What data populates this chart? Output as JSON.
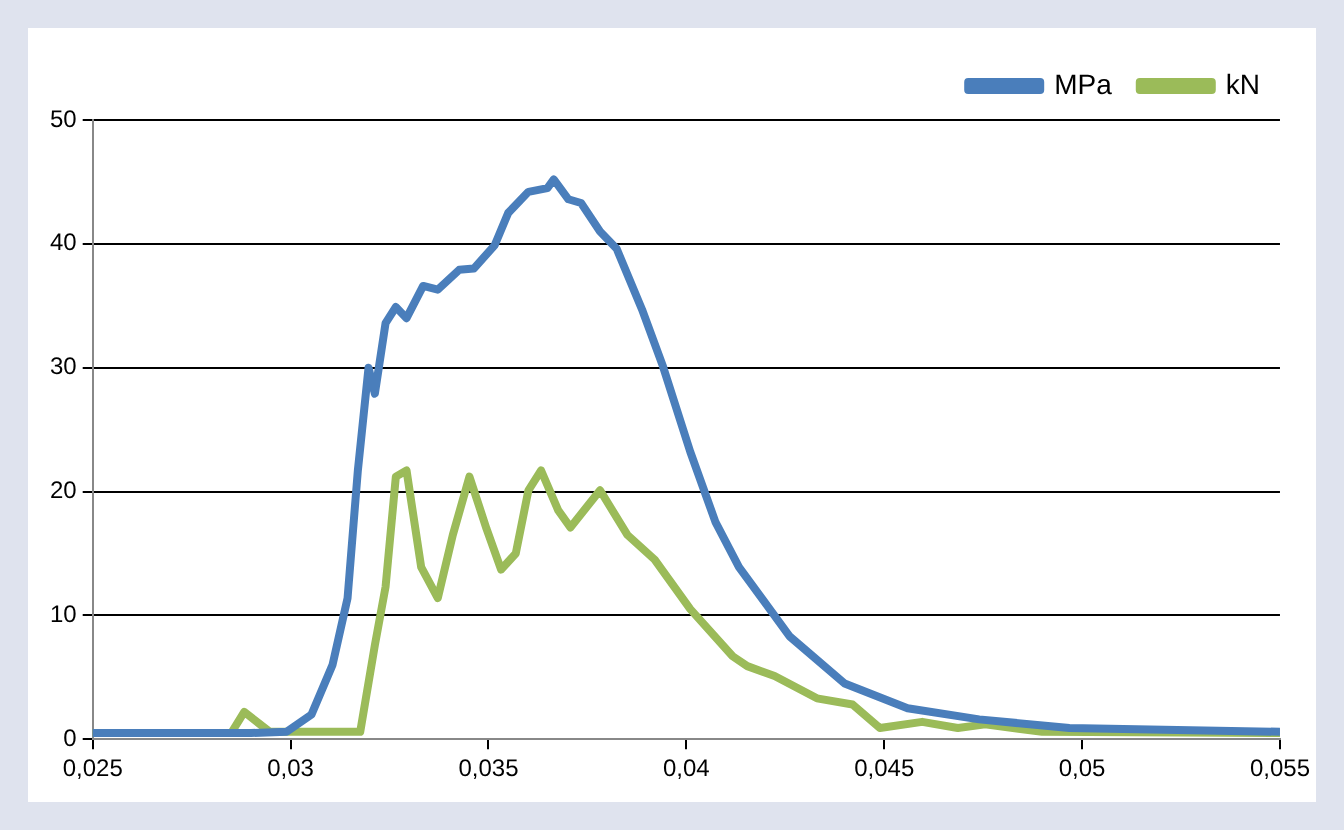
{
  "chart_data": {
    "type": "line",
    "xlim": [
      0.025,
      0.055
    ],
    "xticks": [
      {
        "value": 0.025,
        "label": "0,025"
      },
      {
        "value": 0.03,
        "label": "0,03"
      },
      {
        "value": 0.035,
        "label": "0,035"
      },
      {
        "value": 0.04,
        "label": "0,04"
      },
      {
        "value": 0.045,
        "label": "0,045"
      },
      {
        "value": 0.05,
        "label": "0,05"
      },
      {
        "value": 0.055,
        "label": "0,055"
      }
    ],
    "ylim": [
      0,
      50
    ],
    "yticks": [
      0,
      10,
      20,
      30,
      40,
      50
    ],
    "grid": "y",
    "legend": "top right",
    "marker": "none",
    "line_style": "solid",
    "series": [
      {
        "name": "MPa",
        "color": "#4a7ebb",
        "x": [
          0.025,
          0.029,
          0.0299,
          0.03053,
          0.03106,
          0.03144,
          0.0317,
          0.03197,
          0.03213,
          0.0324,
          0.03266,
          0.03293,
          0.03335,
          0.03372,
          0.03426,
          0.03463,
          0.03516,
          0.0355,
          0.03601,
          0.03649,
          0.03665,
          0.03702,
          0.03734,
          0.03782,
          0.03824,
          0.03888,
          0.03941,
          0.0401,
          0.04074,
          0.04133,
          0.04261,
          0.044,
          0.04559,
          0.0474,
          0.04968,
          0.055
        ],
        "values": [
          0.5,
          0.5,
          0.6,
          2,
          6,
          11.4,
          21.7,
          30,
          27.9,
          33.6,
          34.9,
          34,
          36.6,
          36.3,
          37.9,
          38,
          39.9,
          42.5,
          44.2,
          44.5,
          45.2,
          43.6,
          43.3,
          41,
          39.6,
          34.7,
          30.1,
          23.2,
          17.5,
          13.9,
          8.3,
          4.5,
          2.5,
          1.6,
          0.9,
          0.6
        ]
      },
      {
        "name": "kN",
        "color": "#9bbb59",
        "x": [
          0.025,
          0.0285,
          0.02883,
          0.02947,
          0.03176,
          0.03213,
          0.0324,
          0.03266,
          0.03293,
          0.0333,
          0.03372,
          0.0341,
          0.03452,
          0.03495,
          0.03532,
          0.03569,
          0.03601,
          0.03633,
          0.03676,
          0.03707,
          0.03782,
          0.03851,
          0.0392,
          0.0401,
          0.04117,
          0.04154,
          0.04223,
          0.0433,
          0.0442,
          0.04489,
          0.04596,
          0.04686,
          0.04755,
          0.04899,
          0.055
        ],
        "values": [
          0.5,
          0.5,
          2.2,
          0.6,
          0.6,
          7.6,
          12.3,
          21.2,
          21.7,
          13.9,
          11.4,
          16.5,
          21.2,
          17,
          13.7,
          15,
          20.1,
          21.7,
          18.5,
          17.1,
          20.1,
          16.5,
          14.5,
          10.5,
          6.7,
          5.9,
          5.1,
          3.3,
          2.8,
          0.9,
          1.4,
          0.9,
          1.2,
          0.6,
          0.5
        ]
      }
    ]
  }
}
